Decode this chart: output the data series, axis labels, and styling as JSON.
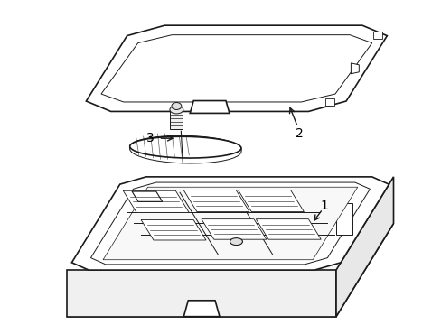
{
  "background_color": "#ffffff",
  "line_color": "#1a1a1a",
  "label_color": "#000000",
  "figure_width": 4.89,
  "figure_height": 3.6,
  "dpi": 100
}
